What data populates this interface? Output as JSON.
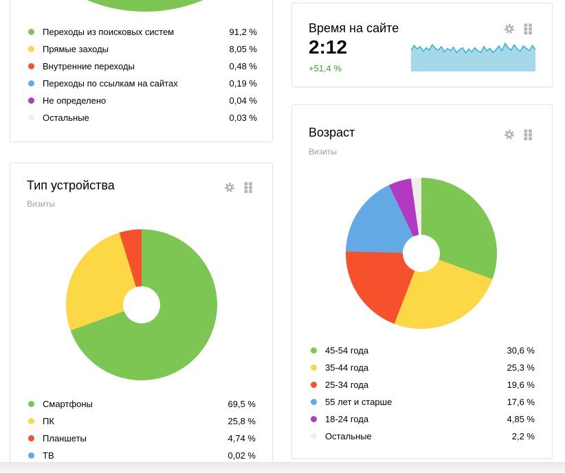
{
  "page": {
    "background": "#ffffff",
    "bottom_edge_color": "#e8e8e8",
    "card_border_color": "#e4e4e4",
    "icon_color": "#b3b3b3"
  },
  "widgets": {
    "traffic_sources": {
      "chart_type": "donut",
      "header_icons": [],
      "legend": [
        {
          "label": "Переходы из поисковых систем",
          "value": 91.2,
          "display": "91,2 %",
          "color": "#7dc653"
        },
        {
          "label": "Прямые заходы",
          "value": 8.05,
          "display": "8,05 %",
          "color": "#fcd846"
        },
        {
          "label": "Внутренние переходы",
          "value": 0.48,
          "display": "0,48 %",
          "color": "#f5512d"
        },
        {
          "label": "Переходы по ссылкам на сайтах",
          "value": 0.19,
          "display": "0,19 %",
          "color": "#63aae4"
        },
        {
          "label": "Не определено",
          "value": 0.04,
          "display": "0,04 %",
          "color": "#b23ac0"
        },
        {
          "label": "Остальные",
          "value": 0.03,
          "display": "0,03 %",
          "color": "#efeeea"
        }
      ]
    },
    "time_on_site": {
      "title": "Время на сайте",
      "value": "2:12",
      "change": "+51,4 %",
      "change_color": "#3aa42c",
      "header_icons": [
        "settings-gear-icon",
        "drag-handle-icon"
      ],
      "sparkline": {
        "type": "area",
        "fill": "#a5d9ea",
        "line": "#2fb4d8",
        "values": [
          0.7,
          0.88,
          0.76,
          0.84,
          0.68,
          0.8,
          0.72,
          0.9,
          0.78,
          0.72,
          0.84,
          0.66,
          0.78,
          0.7,
          0.82,
          0.64,
          0.74,
          0.8,
          0.62,
          0.76,
          0.66,
          0.8,
          0.7,
          0.64,
          0.84,
          0.7,
          0.78,
          0.64,
          0.74,
          0.86,
          0.7,
          0.95,
          0.8,
          0.72,
          0.9,
          0.76,
          0.68,
          0.86,
          0.78,
          0.7,
          0.88,
          0.74
        ]
      }
    },
    "device_type": {
      "title": "Тип устройства",
      "subtitle": "Визиты",
      "chart_type": "donut",
      "header_icons": [
        "settings-gear-icon",
        "drag-handle-icon"
      ],
      "legend": [
        {
          "label": "Смартфоны",
          "value": 69.5,
          "display": "69,5 %",
          "color": "#7dc653"
        },
        {
          "label": "ПК",
          "value": 25.8,
          "display": "25,8 %",
          "color": "#fcd846"
        },
        {
          "label": "Планшеты",
          "value": 4.74,
          "display": "4,74 %",
          "color": "#f5512d"
        },
        {
          "label": "ТВ",
          "value": 0.02,
          "display": "0,02 %",
          "color": "#63aae4"
        }
      ]
    },
    "age": {
      "title": "Возраст",
      "subtitle": "Визиты",
      "chart_type": "donut",
      "header_icons": [
        "settings-gear-icon",
        "drag-handle-icon"
      ],
      "legend": [
        {
          "label": "45-54 года",
          "value": 30.6,
          "display": "30,6 %",
          "color": "#7dc653"
        },
        {
          "label": "35-44 года",
          "value": 25.3,
          "display": "25,3 %",
          "color": "#fcd846"
        },
        {
          "label": "25-34 года",
          "value": 19.6,
          "display": "19,6 %",
          "color": "#f5512d"
        },
        {
          "label": "55 лет и старше",
          "value": 17.6,
          "display": "17,6 %",
          "color": "#63aae4"
        },
        {
          "label": "18-24 года",
          "value": 4.85,
          "display": "4,85 %",
          "color": "#b23ac0"
        },
        {
          "label": "Остальные",
          "value": 2.2,
          "display": "2,2 %",
          "color": "#efeeea"
        }
      ]
    }
  }
}
